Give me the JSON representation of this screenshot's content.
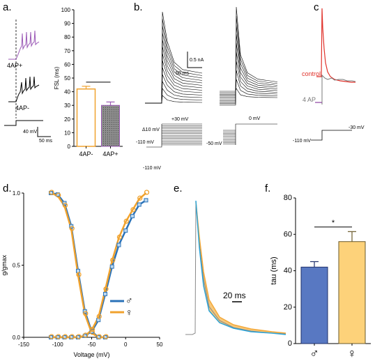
{
  "panels": {
    "a": {
      "letter": "a.",
      "trace_labels": [
        "4AP+",
        "4AP-"
      ],
      "scalebar": {
        "y_label": "40 mV",
        "x_label": "50 ms"
      },
      "bar_chart": {
        "ylabel": "FSL (ms)",
        "significance": "***"
      }
    },
    "b": {
      "letter": "b.",
      "scalebar": {
        "y_label": "0.5 nA",
        "x_label": "50 ms"
      },
      "protocol_left": {
        "labels": [
          "+30 mV",
          "Δ10 mV",
          "-110 mV",
          "-110 mV"
        ]
      },
      "protocol_right": {
        "labels": [
          "0 mV",
          "-50 mV"
        ]
      }
    },
    "c": {
      "letter": "c",
      "trace_labels": {
        "control": "control",
        "drug": "4 AP"
      },
      "protocol": {
        "labels": [
          "-30 mV",
          "-110 mV"
        ]
      },
      "colors": {
        "control": "#e0322b",
        "drug": "#777777",
        "drug_mark": "#8b3fa0"
      }
    },
    "d": {
      "letter": "d.",
      "legend": [
        {
          "symbol": "♂",
          "color": "#2a72b8"
        },
        {
          "symbol": "♀",
          "color": "#f0a22e"
        }
      ]
    },
    "e": {
      "letter": "e.",
      "scalebar": {
        "x_label": "20 ms"
      },
      "colors": {
        "male": "#2ba3d8",
        "female": "#f4a93a",
        "grey": "#888888"
      }
    },
    "f": {
      "letter": "f.",
      "significance": "*"
    }
  },
  "chart_data": [
    {
      "id": "a-bar",
      "type": "bar",
      "categories": [
        "4AP-",
        "4AP+"
      ],
      "values": [
        42,
        30
      ],
      "errors": [
        2,
        2.5
      ],
      "colors": [
        "#f0a22e",
        "#9b59b6"
      ],
      "ylabel": "FSL (ms)",
      "ylim": [
        0,
        100
      ],
      "yticks": [
        0,
        10,
        20,
        30,
        40,
        50,
        60,
        70,
        80,
        90,
        100
      ]
    },
    {
      "id": "d-activation",
      "type": "scatter",
      "xlabel": "Voltage (mV)",
      "ylabel": "g/gmax",
      "xlim": [
        -150,
        50
      ],
      "ylim": [
        0,
        1
      ],
      "xticks": [
        -150,
        -100,
        -50,
        0,
        50
      ],
      "yticks": [
        0.0,
        0.5,
        1.0
      ],
      "series": [
        {
          "symbol": "♂",
          "color": "#2a72b8",
          "activation": {
            "x": [
              -110,
              -100,
              -90,
              -80,
              -70,
              -60,
              -50,
              -40,
              -30,
              -20,
              -10,
              0,
              10,
              20,
              30
            ],
            "y": [
              0,
              0,
              0,
              0,
              0,
              0.01,
              0.04,
              0.12,
              0.3,
              0.49,
              0.64,
              0.74,
              0.84,
              0.92,
              0.95
            ]
          },
          "inactivation": {
            "x": [
              -110,
              -100,
              -90,
              -80,
              -70,
              -60,
              -50,
              -40,
              -30
            ],
            "y": [
              1.0,
              0.99,
              0.93,
              0.77,
              0.46,
              0.18,
              0.04,
              0.0,
              0.0
            ]
          }
        },
        {
          "symbol": "♀",
          "color": "#f0a22e",
          "activation": {
            "x": [
              -110,
              -100,
              -90,
              -80,
              -70,
              -60,
              -50,
              -40,
              -30,
              -20,
              -10,
              0,
              10,
              20,
              30
            ],
            "y": [
              0,
              0,
              0,
              0,
              0,
              0.01,
              0.05,
              0.14,
              0.33,
              0.53,
              0.69,
              0.8,
              0.88,
              0.96,
              1.0
            ]
          },
          "inactivation": {
            "x": [
              -110,
              -100,
              -90,
              -80,
              -70,
              -60,
              -50,
              -40,
              -30
            ],
            "y": [
              1.0,
              0.98,
              0.91,
              0.75,
              0.43,
              0.16,
              0.03,
              0.0,
              0.0
            ]
          }
        }
      ]
    },
    {
      "id": "f-bar",
      "type": "bar",
      "categories": [
        "♂",
        "♀"
      ],
      "values": [
        42,
        56
      ],
      "errors": [
        3,
        5.5
      ],
      "colors": [
        "#5878c2",
        "#fdd27a"
      ],
      "ylabel": "tau (ms)",
      "ylim": [
        0,
        80
      ],
      "yticks": [
        0,
        20,
        40,
        60,
        80
      ]
    }
  ]
}
